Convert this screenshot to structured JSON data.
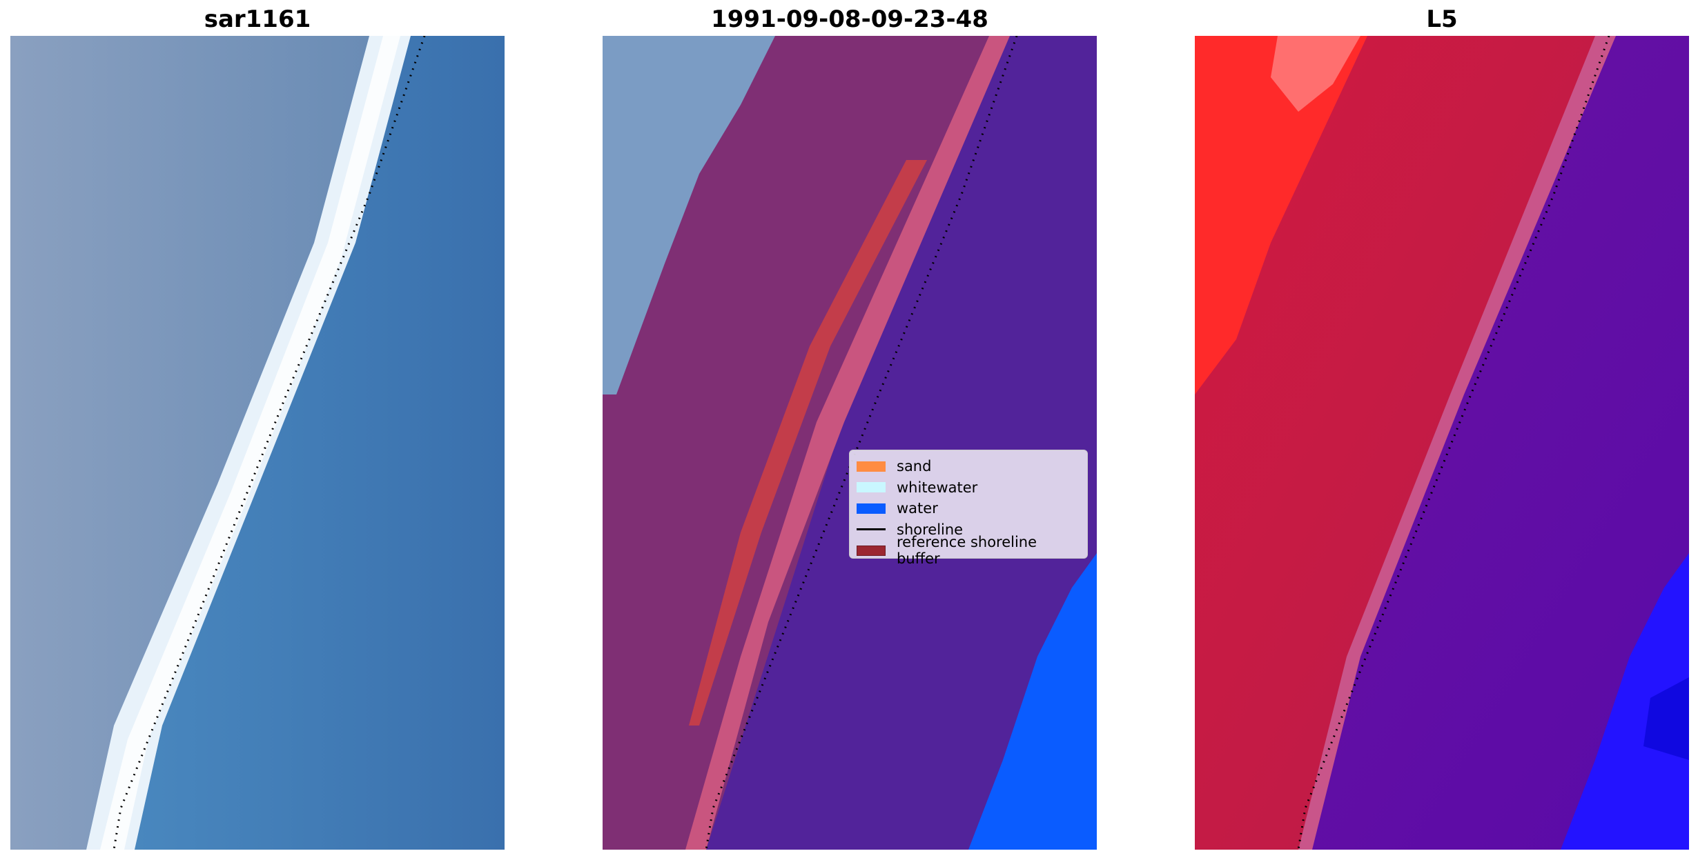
{
  "panels": [
    {
      "title": "sar1161"
    },
    {
      "title": "1991-09-08-09-23-48"
    },
    {
      "title": "L5"
    }
  ],
  "legend": {
    "items": [
      {
        "label": "sand",
        "color": "#ff8c42"
      },
      {
        "label": "whitewater",
        "color": "#c9f7ff"
      },
      {
        "label": "water",
        "color": "#0a5cff"
      },
      {
        "label": "shoreline",
        "color": "#000000"
      },
      {
        "label": "reference shoreline buffer",
        "color": "#9b2731"
      }
    ]
  }
}
